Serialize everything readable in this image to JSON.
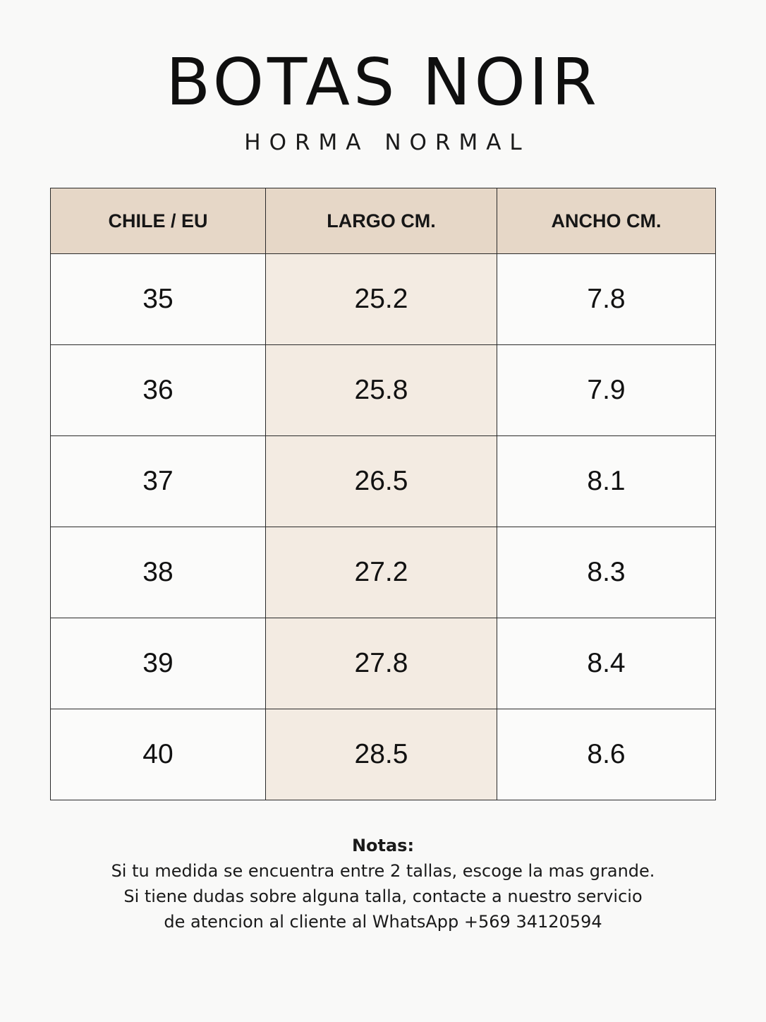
{
  "header": {
    "title": "BOTAS NOIR",
    "subtitle": "HORMA NORMAL"
  },
  "table": {
    "columns": [
      "CHILE / EU",
      "LARGO CM.",
      "ANCHO CM."
    ],
    "rows": [
      [
        "35",
        "25.2",
        "7.8"
      ],
      [
        "36",
        "25.8",
        "7.9"
      ],
      [
        "37",
        "26.5",
        "8.1"
      ],
      [
        "38",
        "27.2",
        "8.3"
      ],
      [
        "39",
        "27.8",
        "8.4"
      ],
      [
        "40",
        "28.5",
        "8.6"
      ]
    ]
  },
  "notes": {
    "title": "Notas:",
    "lines": [
      "Si tu medida se encuentra entre 2 tallas, escoge la mas grande.",
      "Si tiene dudas sobre alguna talla, contacte a nuestro servicio",
      "de atencion al cliente al WhatsApp +569 34120594"
    ]
  },
  "colors": {
    "background": "#f9f9f8",
    "header_fill": "#e6d7c7",
    "highlight_column": "#f3ebe2",
    "border": "#2a2a2a"
  }
}
